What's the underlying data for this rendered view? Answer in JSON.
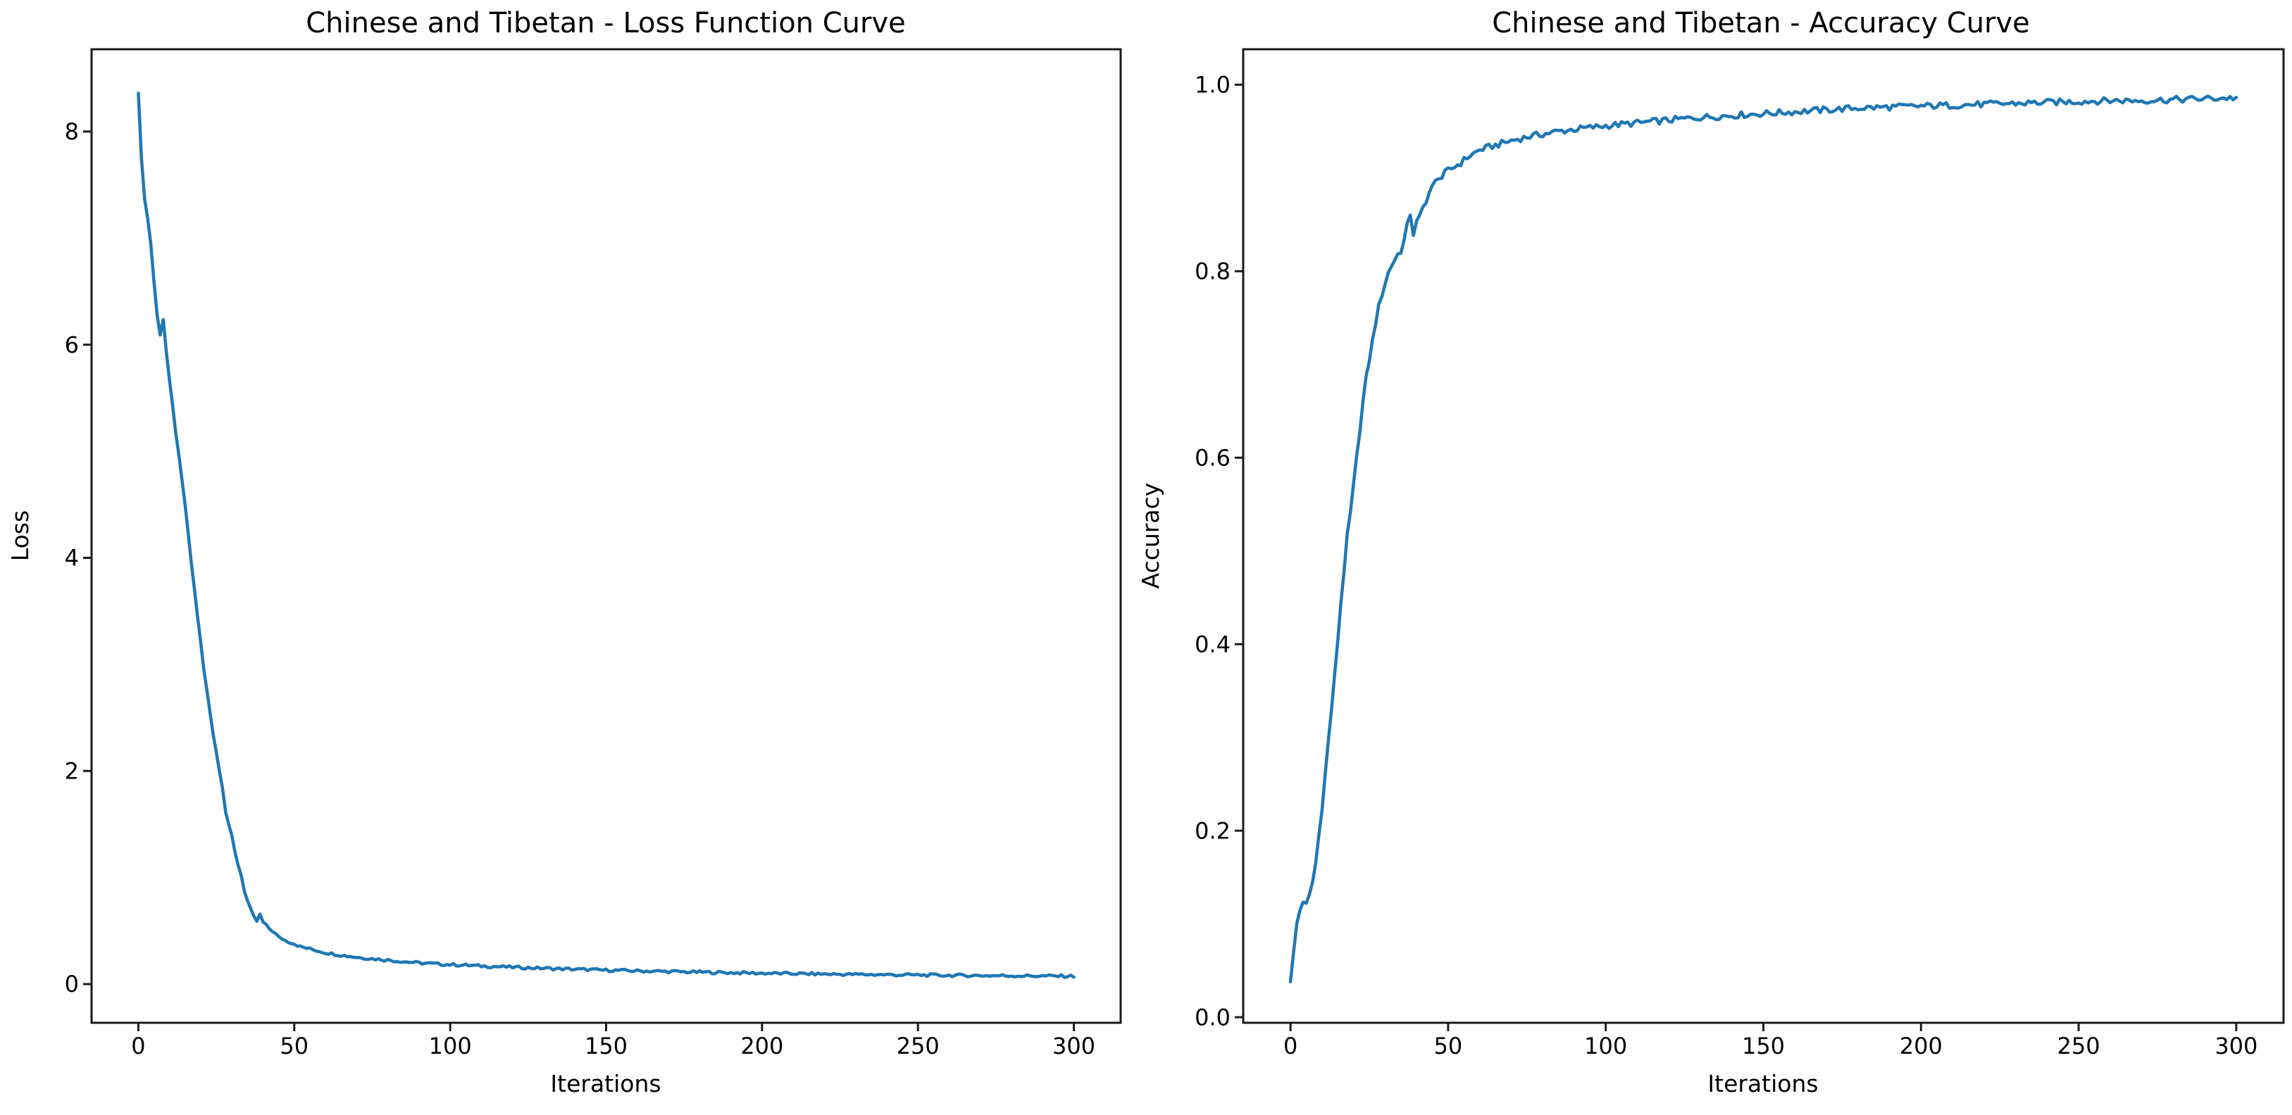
{
  "figure": {
    "background_color": "#ffffff",
    "text_color": "#000000",
    "curve_color": "#1f77b4"
  },
  "chart_data": [
    {
      "type": "line",
      "title": "Chinese and Tibetan - Loss Function Curve",
      "xlabel": "Iterations",
      "ylabel": "Loss",
      "xlim": [
        -15,
        315
      ],
      "ylim": [
        -0.363,
        8.772
      ],
      "grid": false,
      "legend": "none",
      "line_color": "#1f77b4",
      "noise_amplitude": 0.013,
      "xticks": {
        "values": [
          0,
          50,
          100,
          150,
          200,
          250,
          300
        ],
        "labels": [
          "0",
          "50",
          "100",
          "150",
          "200",
          "250",
          "300"
        ]
      },
      "yticks": {
        "values": [
          0,
          2,
          4,
          6,
          8
        ],
        "labels": [
          "0",
          "2",
          "4",
          "6",
          "8"
        ]
      },
      "points": [
        [
          0,
          8.36
        ],
        [
          1,
          7.75
        ],
        [
          2,
          7.38
        ],
        [
          3,
          7.18
        ],
        [
          4,
          6.95
        ],
        [
          5,
          6.6
        ],
        [
          6,
          6.28
        ],
        [
          7,
          6.1
        ],
        [
          8,
          6.24
        ],
        [
          9,
          5.92
        ],
        [
          10,
          5.65
        ],
        [
          11,
          5.42
        ],
        [
          12,
          5.18
        ],
        [
          13,
          4.95
        ],
        [
          14,
          4.72
        ],
        [
          15,
          4.5
        ],
        [
          16,
          4.22
        ],
        [
          17,
          3.95
        ],
        [
          18,
          3.7
        ],
        [
          19,
          3.45
        ],
        [
          20,
          3.2
        ],
        [
          21,
          2.95
        ],
        [
          22,
          2.75
        ],
        [
          23,
          2.55
        ],
        [
          24,
          2.35
        ],
        [
          25,
          2.18
        ],
        [
          26,
          2.0
        ],
        [
          27,
          1.85
        ],
        [
          28,
          1.62
        ],
        [
          29,
          1.5
        ],
        [
          30,
          1.38
        ],
        [
          31,
          1.23
        ],
        [
          32,
          1.12
        ],
        [
          33,
          1.02
        ],
        [
          34,
          0.88
        ],
        [
          35,
          0.78
        ],
        [
          36,
          0.7
        ],
        [
          37,
          0.63
        ],
        [
          38,
          0.59
        ],
        [
          39,
          0.65
        ],
        [
          40,
          0.58
        ],
        [
          41,
          0.55
        ],
        [
          42,
          0.52
        ],
        [
          43,
          0.5
        ],
        [
          44,
          0.47
        ],
        [
          45,
          0.44
        ],
        [
          46,
          0.43
        ],
        [
          47,
          0.41
        ],
        [
          48,
          0.4
        ],
        [
          49,
          0.39
        ],
        [
          50,
          0.38
        ],
        [
          52,
          0.35
        ],
        [
          55,
          0.33
        ],
        [
          58,
          0.31
        ],
        [
          60,
          0.295
        ],
        [
          65,
          0.272
        ],
        [
          70,
          0.252
        ],
        [
          75,
          0.238
        ],
        [
          80,
          0.226
        ],
        [
          85,
          0.211
        ],
        [
          90,
          0.199
        ],
        [
          95,
          0.19
        ],
        [
          100,
          0.183
        ],
        [
          110,
          0.17
        ],
        [
          120,
          0.158
        ],
        [
          130,
          0.148
        ],
        [
          140,
          0.139
        ],
        [
          150,
          0.131
        ],
        [
          160,
          0.124
        ],
        [
          170,
          0.118
        ],
        [
          180,
          0.112
        ],
        [
          190,
          0.107
        ],
        [
          200,
          0.102
        ],
        [
          210,
          0.098
        ],
        [
          220,
          0.094
        ],
        [
          230,
          0.091
        ],
        [
          240,
          0.088
        ],
        [
          250,
          0.085
        ],
        [
          260,
          0.082
        ],
        [
          270,
          0.08
        ],
        [
          280,
          0.078
        ],
        [
          290,
          0.076
        ],
        [
          300,
          0.074
        ]
      ]
    },
    {
      "type": "line",
      "title": "Chinese and Tibetan - Accuracy Curve",
      "xlabel": "Iterations",
      "ylabel": "Accuracy",
      "xlim": [
        -15,
        315
      ],
      "ylim": [
        -0.006,
        1.038
      ],
      "grid": false,
      "legend": "none",
      "line_color": "#1f77b4",
      "noise_amplitude": 0.0035,
      "xticks": {
        "values": [
          0,
          50,
          100,
          150,
          200,
          250,
          300
        ],
        "labels": [
          "0",
          "50",
          "100",
          "150",
          "200",
          "250",
          "300"
        ]
      },
      "yticks": {
        "values": [
          0.0,
          0.2,
          0.4,
          0.6,
          0.8,
          1.0
        ],
        "labels": [
          "0.0",
          "0.2",
          "0.4",
          "0.6",
          "0.8",
          "1.0"
        ]
      },
      "points": [
        [
          0,
          0.038
        ],
        [
          1,
          0.07
        ],
        [
          2,
          0.1
        ],
        [
          3,
          0.115
        ],
        [
          4,
          0.125
        ],
        [
          5,
          0.12
        ],
        [
          6,
          0.13
        ],
        [
          7,
          0.145
        ],
        [
          8,
          0.165
        ],
        [
          9,
          0.195
        ],
        [
          10,
          0.225
        ],
        [
          11,
          0.26
        ],
        [
          12,
          0.295
        ],
        [
          13,
          0.33
        ],
        [
          14,
          0.365
        ],
        [
          15,
          0.405
        ],
        [
          16,
          0.445
        ],
        [
          17,
          0.48
        ],
        [
          18,
          0.515
        ],
        [
          19,
          0.54
        ],
        [
          20,
          0.57
        ],
        [
          21,
          0.6
        ],
        [
          22,
          0.63
        ],
        [
          23,
          0.66
        ],
        [
          24,
          0.685
        ],
        [
          25,
          0.705
        ],
        [
          26,
          0.725
        ],
        [
          27,
          0.745
        ],
        [
          28,
          0.762
        ],
        [
          29,
          0.775
        ],
        [
          30,
          0.787
        ],
        [
          31,
          0.798
        ],
        [
          32,
          0.806
        ],
        [
          33,
          0.812
        ],
        [
          34,
          0.818
        ],
        [
          35,
          0.822
        ],
        [
          36,
          0.832
        ],
        [
          37,
          0.848
        ],
        [
          38,
          0.862
        ],
        [
          39,
          0.84
        ],
        [
          40,
          0.852
        ],
        [
          41,
          0.858
        ],
        [
          42,
          0.868
        ],
        [
          43,
          0.876
        ],
        [
          44,
          0.884
        ],
        [
          45,
          0.89
        ],
        [
          46,
          0.896
        ],
        [
          47,
          0.902
        ],
        [
          48,
          0.9
        ],
        [
          49,
          0.905
        ],
        [
          50,
          0.908
        ],
        [
          52,
          0.912
        ],
        [
          54,
          0.916
        ],
        [
          56,
          0.922
        ],
        [
          58,
          0.926
        ],
        [
          60,
          0.93
        ],
        [
          63,
          0.933
        ],
        [
          66,
          0.936
        ],
        [
          70,
          0.94
        ],
        [
          75,
          0.944
        ],
        [
          80,
          0.947
        ],
        [
          85,
          0.95
        ],
        [
          90,
          0.952
        ],
        [
          95,
          0.954
        ],
        [
          100,
          0.956
        ],
        [
          110,
          0.959
        ],
        [
          120,
          0.962
        ],
        [
          130,
          0.965
        ],
        [
          140,
          0.967
        ],
        [
          150,
          0.969
        ],
        [
          160,
          0.971
        ],
        [
          170,
          0.973
        ],
        [
          180,
          0.975
        ],
        [
          190,
          0.976
        ],
        [
          200,
          0.977
        ],
        [
          210,
          0.978
        ],
        [
          220,
          0.979
        ],
        [
          230,
          0.98
        ],
        [
          240,
          0.981
        ],
        [
          250,
          0.982
        ],
        [
          260,
          0.983
        ],
        [
          270,
          0.983
        ],
        [
          280,
          0.984
        ],
        [
          290,
          0.985
        ],
        [
          300,
          0.986
        ]
      ]
    }
  ]
}
